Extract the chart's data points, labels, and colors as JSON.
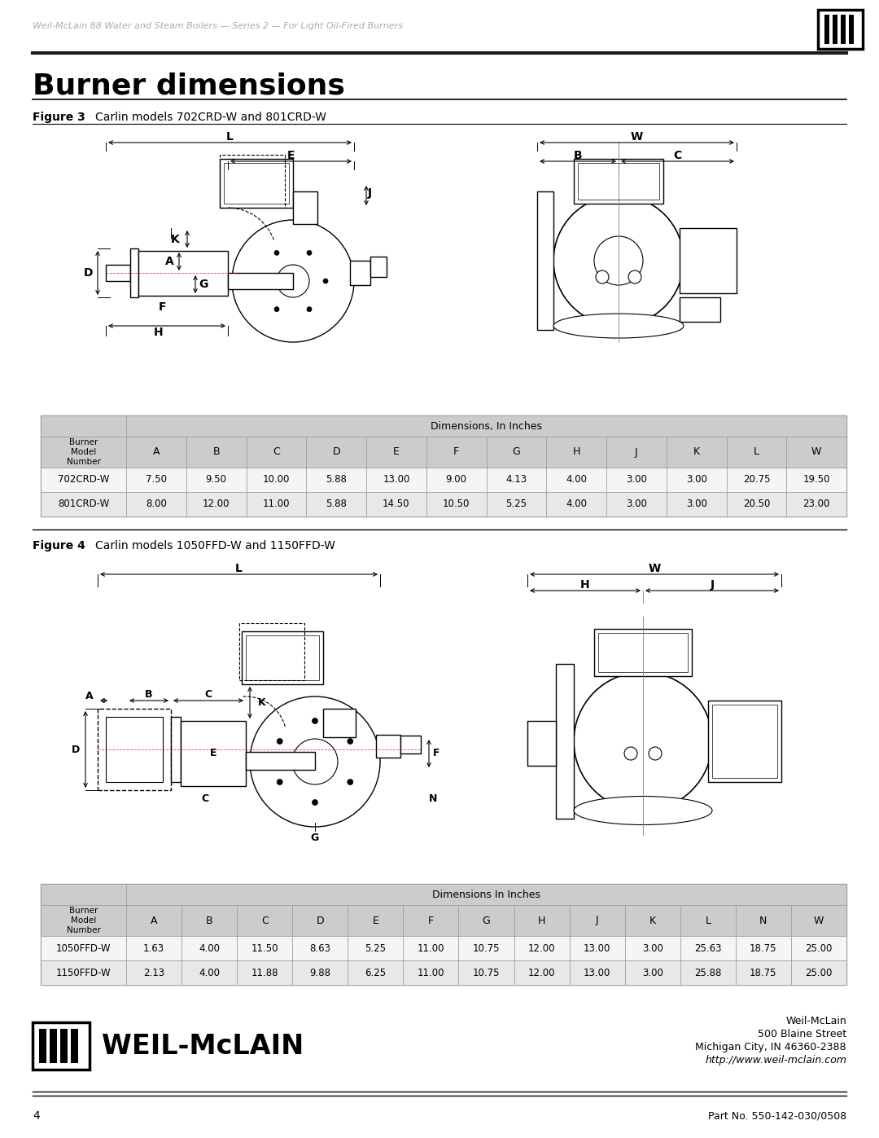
{
  "header_text": "Weil-McLain 88 Water and Steam Boilers — Series 2 — For Light Oil-Fired Burners",
  "title": "Burner dimensions",
  "fig3_label": "Figure 3",
  "fig3_caption": "Carlin models 702CRD-W and 801CRD-W",
  "fig4_label": "Figure 4",
  "fig4_caption": "Carlin models 1050FFD-W and 1150FFD-W",
  "table1_header_col1": "Burner\nModel\nNumber",
  "table1_header_span": "Dimensions, In Inches",
  "table1_cols": [
    "A",
    "B",
    "C",
    "D",
    "E",
    "F",
    "G",
    "H",
    "J",
    "K",
    "L",
    "W"
  ],
  "table1_rows": [
    [
      "702CRD-W",
      "7.50",
      "9.50",
      "10.00",
      "5.88",
      "13.00",
      "9.00",
      "4.13",
      "4.00",
      "3.00",
      "3.00",
      "20.75",
      "19.50"
    ],
    [
      "801CRD-W",
      "8.00",
      "12.00",
      "11.00",
      "5.88",
      "14.50",
      "10.50",
      "5.25",
      "4.00",
      "3.00",
      "3.00",
      "20.50",
      "23.00"
    ]
  ],
  "table2_header_col1": "Burner\nModel\nNumber",
  "table2_header_span": "Dimensions In Inches",
  "table2_cols": [
    "A",
    "B",
    "C",
    "D",
    "E",
    "F",
    "G",
    "H",
    "J",
    "K",
    "L",
    "N",
    "W"
  ],
  "table2_rows": [
    [
      "1050FFD-W",
      "1.63",
      "4.00",
      "11.50",
      "8.63",
      "5.25",
      "11.00",
      "10.75",
      "12.00",
      "13.00",
      "3.00",
      "25.63",
      "18.75",
      "25.00"
    ],
    [
      "1150FFD-W",
      "2.13",
      "4.00",
      "11.88",
      "9.88",
      "6.25",
      "11.00",
      "10.75",
      "12.00",
      "13.00",
      "3.00",
      "25.88",
      "18.75",
      "25.00"
    ]
  ],
  "footer_company": "Weil-McLain",
  "footer_address": "500 Blaine Street",
  "footer_city": "Michigan City, IN 46360-2388",
  "footer_web": "http://www.weil-mclain.com",
  "footer_page": "4",
  "footer_part": "Part No. 550-142-030/0508",
  "bg_color": "#ffffff",
  "table_header_bg": "#cccccc",
  "table_row_bg": "#f5f5f5",
  "table_alt_bg": "#e8e8e8",
  "header_color": "#aaaaaa",
  "title_color": "#000000",
  "table_border": "#999999"
}
